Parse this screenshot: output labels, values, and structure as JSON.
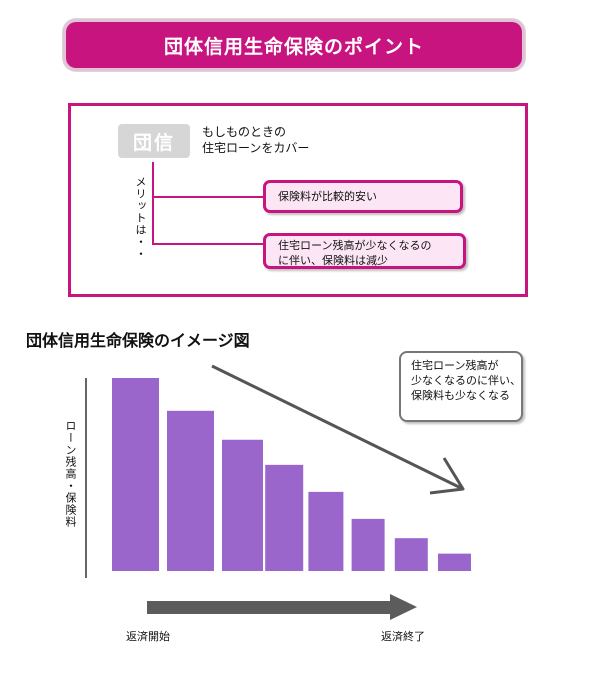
{
  "banner": {
    "title": "団体信用生命保険のポイント"
  },
  "point": {
    "badge": "団信",
    "desc_line1": "もしものときの",
    "desc_line2": "住宅ローンをカバー",
    "merit_label": "メリットは・・",
    "merit1": "保険料が比較的安い",
    "merit2_line1": "住宅ローン残高が少なくなるの",
    "merit2_line2": "に伴い、保険料は減少"
  },
  "chart_heading": "団体信用生命保険のイメージ図",
  "callout": {
    "line1": "住宅ローン残高が",
    "line2": "少なくなるのに伴い、",
    "line3": "保険料も少なくなる"
  },
  "colors": {
    "accent": "#c8147f",
    "bar": "#9a66cc",
    "arrow": "#555555",
    "merit_fill": "#fce6f6"
  },
  "chart_data": {
    "type": "bar",
    "title": "",
    "ylabel": "ローン残高・保険料",
    "xlabel_start": "返済開始",
    "xlabel_end": "返済終了",
    "values": [
      100,
      83,
      68,
      55,
      41,
      27,
      17,
      9
    ],
    "ylim": [
      0,
      100
    ]
  }
}
